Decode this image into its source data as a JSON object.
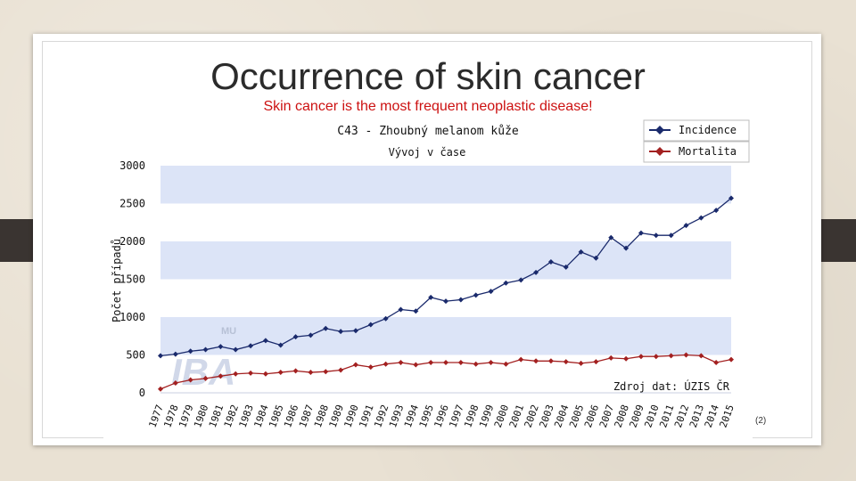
{
  "slide": {
    "title": "Occurrence of skin cancer",
    "subtitle": "Skin cancer is the most frequent neoplastic disease!",
    "citation": "(2)"
  },
  "colors": {
    "band": "#dce4f7",
    "incidence": "#1a2a6c",
    "mortality": "#a32020",
    "title_red": "#cc1111"
  },
  "chart_data": {
    "type": "line",
    "title": "C43 - Zhoubný melanom kůže",
    "subtitle": "Vývoj v čase",
    "ylabel": "Počet případů",
    "xlabel": "",
    "source": "Zdroj dat: ÚZIS ČR",
    "watermark": "IBA",
    "watermark_small": "MU",
    "ylim": [
      0,
      3000
    ],
    "yticks": [
      0,
      500,
      1000,
      1500,
      2000,
      2500,
      3000
    ],
    "legend_position": "top-right",
    "categories": [
      "1977",
      "1978",
      "1979",
      "1980",
      "1981",
      "1982",
      "1983",
      "1984",
      "1985",
      "1986",
      "1987",
      "1988",
      "1989",
      "1990",
      "1991",
      "1992",
      "1993",
      "1994",
      "1995",
      "1996",
      "1997",
      "1998",
      "1999",
      "2000",
      "2001",
      "2002",
      "2003",
      "2004",
      "2005",
      "2006",
      "2007",
      "2008",
      "2009",
      "2010",
      "2011",
      "2012",
      "2013",
      "2014",
      "2015"
    ],
    "series": [
      {
        "name": "Incidence",
        "values": [
          490,
          510,
          550,
          570,
          610,
          570,
          620,
          690,
          630,
          740,
          760,
          850,
          810,
          820,
          900,
          980,
          1100,
          1080,
          1260,
          1210,
          1230,
          1290,
          1340,
          1450,
          1490,
          1590,
          1730,
          1660,
          1860,
          1780,
          2050,
          1910,
          2110,
          2080,
          2080,
          2210,
          2310,
          2410,
          2570
        ]
      },
      {
        "name": "Mortalita",
        "values": [
          50,
          130,
          170,
          190,
          220,
          250,
          260,
          250,
          270,
          290,
          270,
          280,
          300,
          370,
          340,
          380,
          400,
          370,
          400,
          400,
          400,
          380,
          400,
          380,
          440,
          420,
          420,
          410,
          390,
          410,
          460,
          450,
          480,
          480,
          490,
          500,
          490,
          400,
          440
        ]
      }
    ]
  }
}
